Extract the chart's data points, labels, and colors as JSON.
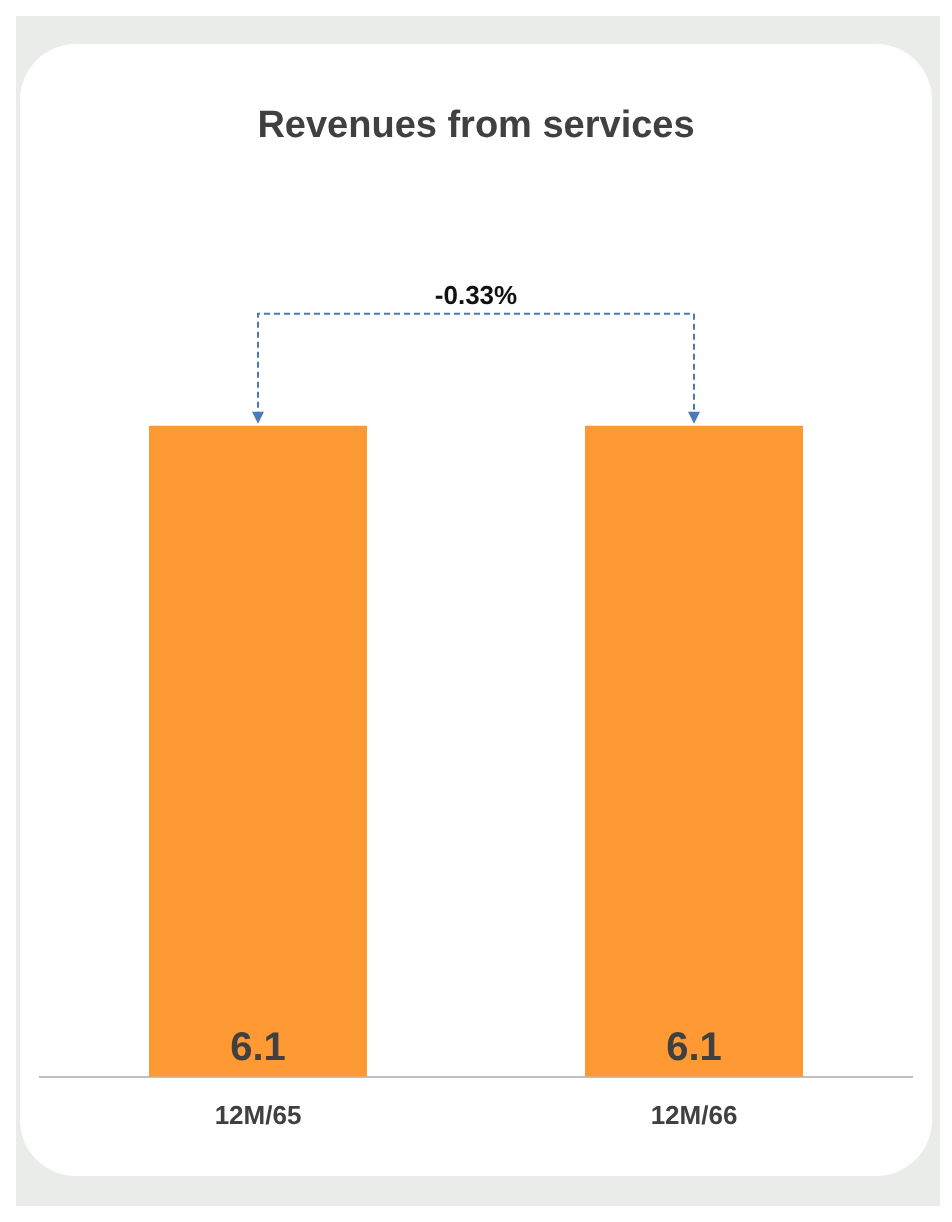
{
  "chart_data": {
    "type": "bar",
    "title": "Revenues from services",
    "categories": [
      "12M/65",
      "12M/66"
    ],
    "values": [
      6.1,
      6.1
    ],
    "color": "#ff9933",
    "tick_labels": "x",
    "data_labels": true,
    "grid": false,
    "legend": false,
    "annotations": [
      "-0.33%"
    ]
  }
}
